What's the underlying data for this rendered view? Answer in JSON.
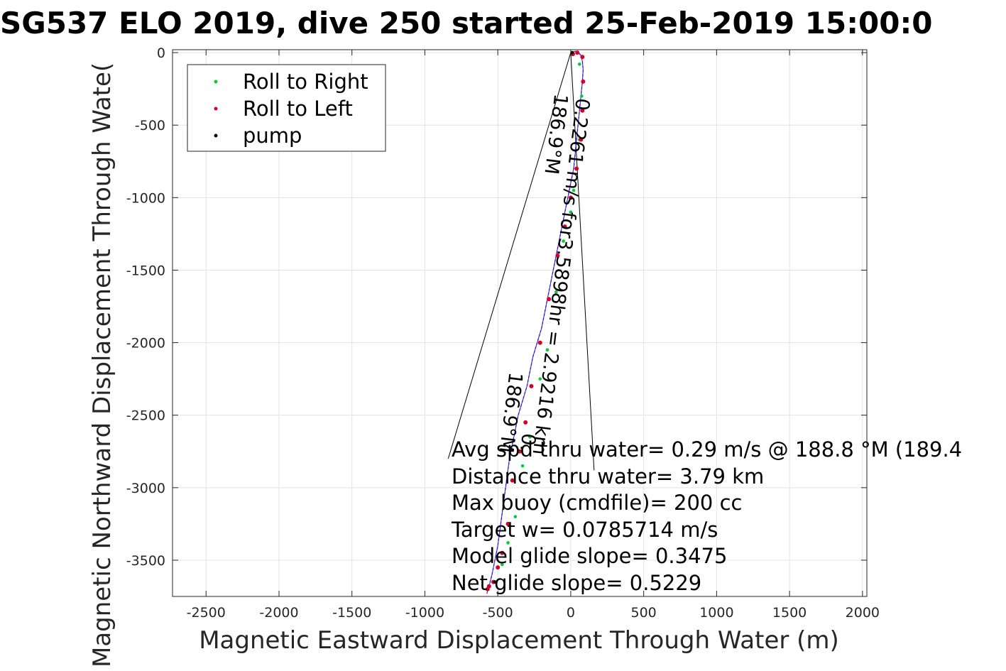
{
  "chart_data": {
    "type": "line",
    "title": "SG537 ELO 2019, dive 250 started 25-Feb-2019 15:00:0",
    "xlabel": "Magnetic Eastward Displacement Through Water (m)",
    "ylabel": "Magnetic Northward Displacement Through Wate(",
    "xlim": [
      -2730,
      2030
    ],
    "ylim": [
      -3750,
      20
    ],
    "xticks": [
      -2500,
      -2000,
      -1500,
      -1000,
      -500,
      0,
      500,
      1000,
      1500,
      2000
    ],
    "yticks": [
      0,
      -500,
      -1000,
      -1500,
      -2000,
      -2500,
      -3000,
      -3500
    ],
    "grid": true,
    "legend_position": "top-left",
    "colors": {
      "track": "#1f1fd8",
      "track_alt": "#c000c0",
      "roll_right": "#00cc33",
      "roll_left": "#d4002a",
      "pump": "#000000"
    },
    "series": [
      {
        "name": "Roll to Right",
        "marker": "dot",
        "color": "#00cc33",
        "x": [
          60,
          75,
          60,
          40,
          20,
          0,
          -50,
          -100,
          -160,
          -210,
          -280,
          -330,
          -380,
          -430,
          -470,
          -520
        ],
        "y": [
          -80,
          -300,
          -600,
          -800,
          -950,
          -1100,
          -1300,
          -1650,
          -2050,
          -2250,
          -2650,
          -2850,
          -3200,
          -3380,
          -3530,
          -3650
        ]
      },
      {
        "name": "Roll to Left",
        "marker": "dot",
        "color": "#d4002a",
        "x": [
          15,
          45,
          80,
          85,
          80,
          70,
          40,
          0,
          -40,
          -90,
          -150,
          -210,
          -270,
          -310,
          -350,
          -400,
          -430,
          -470,
          -500,
          -530,
          -560,
          -570
        ],
        "y": [
          -10,
          0,
          -30,
          -200,
          -400,
          -600,
          -800,
          -1000,
          -1200,
          -1400,
          -1700,
          -2000,
          -2300,
          -2550,
          -2750,
          -2950,
          -3250,
          -3450,
          -3550,
          -3650,
          -3680,
          -3700
        ]
      },
      {
        "name": "pump",
        "marker": "dot",
        "color": "#000000",
        "x": [
          10,
          -520
        ],
        "y": [
          0,
          -3650
        ]
      }
    ],
    "track": {
      "x": [
        10,
        30,
        50,
        70,
        80,
        85,
        80,
        70,
        60,
        50,
        40,
        30,
        20,
        0,
        -20,
        -40,
        -60,
        -80,
        -100,
        -120,
        -140,
        -160,
        -180,
        -200,
        -230,
        -260,
        -280,
        -300,
        -330,
        -360,
        -380,
        -400,
        -420,
        -440,
        -460,
        -480,
        -500,
        -520,
        -540,
        -560,
        -575
      ],
      "y": [
        0,
        10,
        5,
        -20,
        -60,
        -120,
        -200,
        -300,
        -400,
        -500,
        -600,
        -700,
        -800,
        -900,
        -1000,
        -1100,
        -1200,
        -1300,
        -1400,
        -1500,
        -1600,
        -1700,
        -1800,
        -1900,
        -2000,
        -2100,
        -2200,
        -2300,
        -2400,
        -2500,
        -2600,
        -2700,
        -2800,
        -2950,
        -3100,
        -3250,
        -3400,
        -3500,
        -3600,
        -3680,
        -3730
      ]
    },
    "guide_lines": [
      {
        "x": [
          0,
          -840
        ],
        "y": [
          0,
          -2800
        ]
      },
      {
        "x": [
          0,
          160
        ],
        "y": [
          0,
          -2880
        ]
      }
    ],
    "segment_labels": [
      {
        "text": "0.2261 m/s for3.5898hr = 2.9216 km",
        "x": 40,
        "y": -310,
        "rotation": 97
      },
      {
        "text": "186.9°M",
        "x": -110,
        "y": -280,
        "rotation": 97
      },
      {
        "text": "186.9°M",
        "x": -420,
        "y": -2200,
        "rotation": 97
      },
      {
        "text": "0.",
        "x": -330,
        "y": -2620,
        "rotation": 97
      }
    ],
    "annotations": [
      "Avg spd thru water=  0.29 m/s @ 188.8 °M (189.4",
      "Distance thru water=  3.79 km",
      "Max buoy (cmdfile)= 200 cc",
      "Target w= 0.0785714 m/s",
      "Model glide slope= 0.3475",
      "Net glide slope= 0.5229"
    ]
  }
}
